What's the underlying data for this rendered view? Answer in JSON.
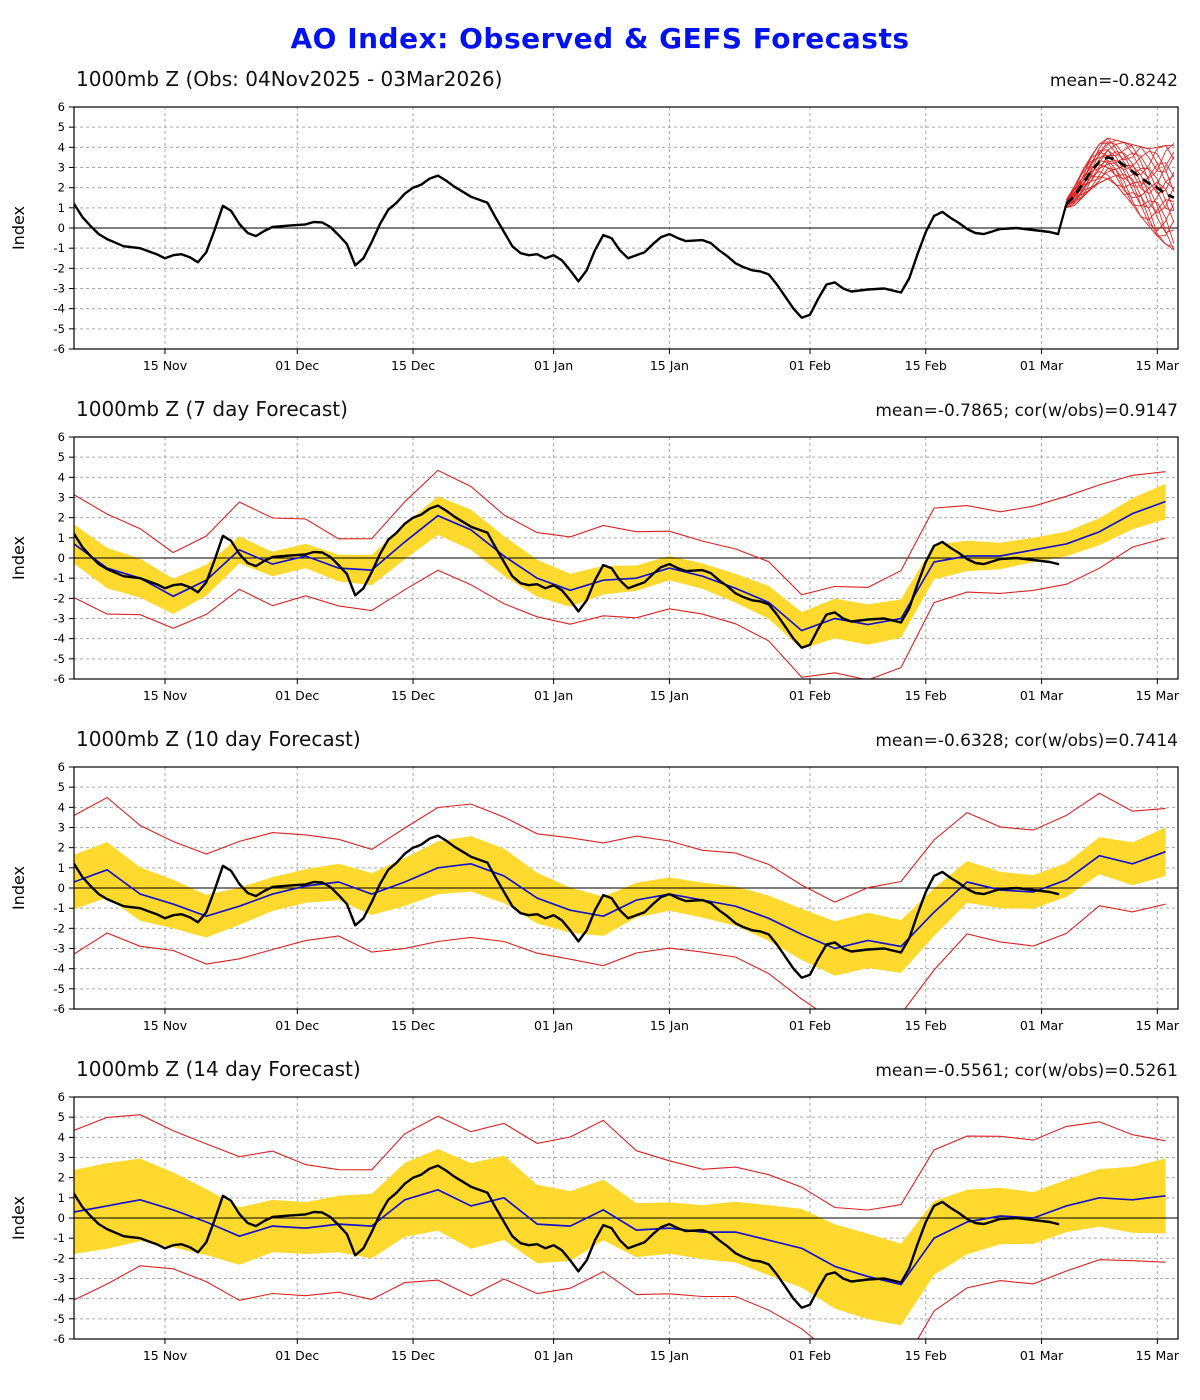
{
  "page_title": "AO Index: Observed & GEFS Forecasts",
  "colors": {
    "title": "#0013ee",
    "obs_line": "#000000",
    "forecast_line": "#1414cc",
    "ensemble_line": "#dd2222",
    "spread_band": "#ffd92e",
    "grid": "#aaaaaa",
    "zero_line": "#000000"
  },
  "axis": {
    "ylabel": "Index",
    "ymin": -6,
    "ymax": 6,
    "xmin": 0,
    "xmax": 133.5,
    "xticks": [
      {
        "day": 11,
        "label": "15 Nov"
      },
      {
        "day": 27,
        "label": "01 Dec"
      },
      {
        "day": 41,
        "label": "15 Dec"
      },
      {
        "day": 58,
        "label": "01 Jan"
      },
      {
        "day": 72,
        "label": "15 Jan"
      },
      {
        "day": 89,
        "label": "01 Feb"
      },
      {
        "day": 103,
        "label": "15 Feb"
      },
      {
        "day": 117,
        "label": "01 Mar"
      },
      {
        "day": 131,
        "label": "15 Mar"
      }
    ]
  },
  "chart_data": [
    {
      "type": "line",
      "title": "1000mb Z (Obs: 04Nov2025 - 03Mar2026)",
      "stats": "mean=-0.8242",
      "obs_pairs": [
        [
          0,
          1.2
        ],
        [
          1,
          0.55
        ],
        [
          2,
          0.1
        ],
        [
          3,
          -0.3
        ],
        [
          4,
          -0.55
        ],
        [
          6,
          -0.9
        ],
        [
          8,
          -1.0
        ],
        [
          9,
          -1.15
        ],
        [
          10,
          -1.3
        ],
        [
          11,
          -1.5
        ],
        [
          12,
          -1.35
        ],
        [
          13,
          -1.3
        ],
        [
          14,
          -1.45
        ],
        [
          15,
          -1.7
        ],
        [
          16,
          -1.2
        ],
        [
          17,
          -0.1
        ],
        [
          18,
          1.1
        ],
        [
          19,
          0.85
        ],
        [
          20,
          0.2
        ],
        [
          21,
          -0.25
        ],
        [
          22,
          -0.4
        ],
        [
          23,
          -0.15
        ],
        [
          24,
          0.05
        ],
        [
          26,
          0.12
        ],
        [
          28,
          0.18
        ],
        [
          29,
          0.3
        ],
        [
          30,
          0.28
        ],
        [
          31,
          0.05
        ],
        [
          32,
          -0.35
        ],
        [
          33,
          -0.8
        ],
        [
          34,
          -1.85
        ],
        [
          35,
          -1.5
        ],
        [
          36,
          -0.7
        ],
        [
          37,
          0.2
        ],
        [
          38,
          0.9
        ],
        [
          39,
          1.25
        ],
        [
          40,
          1.7
        ],
        [
          41,
          2.0
        ],
        [
          42,
          2.15
        ],
        [
          43,
          2.45
        ],
        [
          44,
          2.6
        ],
        [
          45,
          2.35
        ],
        [
          46,
          2.05
        ],
        [
          47,
          1.8
        ],
        [
          48,
          1.55
        ],
        [
          49,
          1.4
        ],
        [
          50,
          1.25
        ],
        [
          51,
          0.5
        ],
        [
          52,
          -0.2
        ],
        [
          53,
          -0.9
        ],
        [
          54,
          -1.25
        ],
        [
          55,
          -1.35
        ],
        [
          56,
          -1.3
        ],
        [
          57,
          -1.5
        ],
        [
          58,
          -1.35
        ],
        [
          59,
          -1.6
        ],
        [
          60,
          -2.1
        ],
        [
          61,
          -2.65
        ],
        [
          62,
          -2.1
        ],
        [
          63,
          -1.1
        ],
        [
          64,
          -0.35
        ],
        [
          65,
          -0.5
        ],
        [
          66,
          -1.1
        ],
        [
          67,
          -1.5
        ],
        [
          68,
          -1.35
        ],
        [
          69,
          -1.2
        ],
        [
          70,
          -0.8
        ],
        [
          71,
          -0.45
        ],
        [
          72,
          -0.3
        ],
        [
          73,
          -0.5
        ],
        [
          74,
          -0.65
        ],
        [
          76,
          -0.6
        ],
        [
          77,
          -0.75
        ],
        [
          78,
          -1.1
        ],
        [
          79,
          -1.4
        ],
        [
          80,
          -1.75
        ],
        [
          81,
          -1.95
        ],
        [
          82,
          -2.1
        ],
        [
          83,
          -2.15
        ],
        [
          84,
          -2.3
        ],
        [
          85,
          -2.8
        ],
        [
          86,
          -3.4
        ],
        [
          87,
          -4.0
        ],
        [
          88,
          -4.45
        ],
        [
          89,
          -4.3
        ],
        [
          90,
          -3.5
        ],
        [
          91,
          -2.8
        ],
        [
          92,
          -2.7
        ],
        [
          93,
          -3.0
        ],
        [
          94,
          -3.15
        ],
        [
          96,
          -3.05
        ],
        [
          98,
          -3.0
        ],
        [
          100,
          -3.2
        ],
        [
          101,
          -2.5
        ],
        [
          102,
          -1.3
        ],
        [
          103,
          -0.2
        ],
        [
          104,
          0.6
        ],
        [
          105,
          0.8
        ],
        [
          106,
          0.5
        ],
        [
          107,
          0.25
        ],
        [
          108,
          -0.05
        ],
        [
          109,
          -0.25
        ],
        [
          110,
          -0.3
        ],
        [
          112,
          -0.05
        ],
        [
          114,
          0.0
        ],
        [
          116,
          -0.1
        ],
        [
          118,
          -0.2
        ],
        [
          119,
          -0.3
        ]
      ],
      "ensemble": {
        "start_day": 120,
        "step": 1,
        "member_count": 22,
        "mean": [
          1.2,
          1.6,
          2.2,
          2.8,
          3.3,
          3.5,
          3.4,
          3.1,
          2.8,
          2.5,
          2.2,
          2.0,
          1.7,
          1.5
        ],
        "min": [
          1.0,
          1.1,
          1.5,
          1.9,
          2.2,
          2.4,
          2.1,
          1.6,
          1.1,
          0.5,
          0.0,
          -0.5,
          -0.9,
          -1.2
        ],
        "max": [
          1.4,
          2.1,
          2.9,
          3.6,
          4.2,
          4.5,
          4.4,
          4.3,
          4.2,
          4.1,
          4.0,
          4.1,
          4.2,
          4.3
        ]
      }
    },
    {
      "type": "line+band",
      "title": "1000mb Z (7 day Forecast)",
      "stats": "mean=-0.7865; cor(w/obs)=0.9147",
      "forecast": {
        "start_day": 0,
        "step": 4,
        "values": [
          0.7,
          -0.5,
          -1.0,
          -1.9,
          -1.1,
          0.4,
          -0.3,
          0.1,
          -0.5,
          -0.6,
          0.8,
          2.1,
          1.4,
          0.1,
          -1.0,
          -1.6,
          -1.1,
          -1.0,
          -0.5,
          -0.9,
          -1.5,
          -2.2,
          -3.6,
          -3.0,
          -3.3,
          -3.0,
          -0.2,
          0.1,
          0.1,
          0.4,
          0.7,
          1.3,
          2.2,
          2.8
        ]
      },
      "band_halfwidth": 0.8,
      "envelope_halfwidth": 2.1
    },
    {
      "type": "line+band",
      "title": "1000mb Z (10 day Forecast)",
      "stats": "mean=-0.6328; cor(w/obs)=0.7414",
      "forecast": {
        "start_day": 0,
        "step": 4,
        "values": [
          0.3,
          0.9,
          -0.3,
          -0.8,
          -1.4,
          -0.9,
          -0.3,
          0.1,
          0.3,
          -0.3,
          0.3,
          1.0,
          1.2,
          0.6,
          -0.5,
          -1.1,
          -1.4,
          -0.6,
          -0.3,
          -0.6,
          -0.9,
          -1.5,
          -2.3,
          -3.0,
          -2.6,
          -2.9,
          -1.2,
          0.3,
          -0.1,
          -0.2,
          0.4,
          1.6,
          1.2,
          1.8
        ]
      },
      "band_halfwidth": 1.1,
      "envelope_halfwidth": 2.9
    },
    {
      "type": "line+band",
      "title": "1000mb Z (14 day Forecast)",
      "stats": "mean=-0.5561; cor(w/obs)=0.5261",
      "forecast": {
        "start_day": 0,
        "step": 4,
        "values": [
          0.3,
          0.6,
          0.9,
          0.4,
          -0.2,
          -0.9,
          -0.4,
          -0.5,
          -0.3,
          -0.4,
          0.9,
          1.4,
          0.6,
          1.0,
          -0.3,
          -0.4,
          0.4,
          -0.6,
          -0.5,
          -0.7,
          -0.7,
          -1.1,
          -1.5,
          -2.4,
          -2.9,
          -3.3,
          -1.0,
          -0.2,
          0.1,
          0.0,
          0.6,
          1.0,
          0.9,
          1.1
        ]
      },
      "band_halfwidth": 1.7,
      "envelope_halfwidth": 3.6
    }
  ]
}
